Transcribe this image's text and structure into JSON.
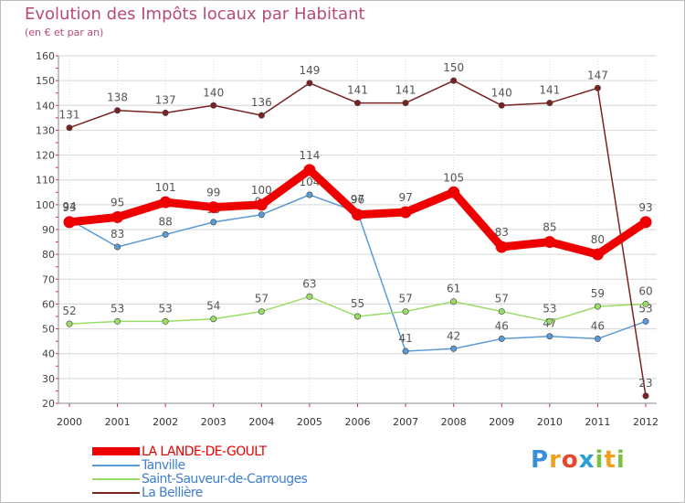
{
  "header": {
    "title": "Evolution des Impôts locaux par Habitant",
    "subtitle": "(en € et par an)"
  },
  "brand": {
    "text": "Proxiti",
    "letters": [
      "P",
      "r",
      "o",
      "x",
      "i",
      "t",
      "i"
    ],
    "letter_colors": [
      "#3a8fd8",
      "#f0a020",
      "#e8452f",
      "#2a9fd8",
      "#7ac043",
      "#f0a020",
      "#7ac043"
    ]
  },
  "chart_data": {
    "type": "line",
    "title": "Evolution des Impôts locaux par Habitant",
    "subtitle": "(en € et par an)",
    "xlabel": "",
    "ylabel": "",
    "ylim": [
      20,
      160
    ],
    "yticks": [
      20,
      30,
      40,
      50,
      60,
      70,
      80,
      90,
      100,
      110,
      120,
      130,
      140,
      150,
      160
    ],
    "grid": true,
    "legend_position": "bottom-left",
    "categories": [
      "2000",
      "2001",
      "2002",
      "2003",
      "2004",
      "2005",
      "2006",
      "2007",
      "2008",
      "2009",
      "2010",
      "2011",
      "2012"
    ],
    "series": [
      {
        "name": "LA LANDE-DE-GOULT",
        "color": "#ee0000",
        "legend_text_color": "#ee0000",
        "emphasis": "bold",
        "values": [
          93,
          95,
          101,
          99,
          100,
          114,
          96,
          97,
          105,
          83,
          85,
          80,
          93
        ]
      },
      {
        "name": "Tanville",
        "color": "#5b9bd5",
        "legend_text_color": "#3f7fd0",
        "emphasis": "normal",
        "values": [
          94,
          83,
          88,
          93,
          96,
          104,
          97,
          41,
          42,
          46,
          47,
          46,
          53
        ]
      },
      {
        "name": "Saint-Sauveur-de-Carrouges",
        "color": "#99dd66",
        "legend_text_color": "#3f7fd0",
        "emphasis": "normal",
        "values": [
          52,
          53,
          53,
          54,
          57,
          63,
          55,
          57,
          61,
          57,
          53,
          59,
          60
        ]
      },
      {
        "name": "La Bellière",
        "color": "#7a2222",
        "legend_text_color": "#3f7fd0",
        "emphasis": "normal",
        "values": [
          131,
          138,
          137,
          140,
          136,
          149,
          141,
          141,
          150,
          140,
          141,
          147,
          23
        ]
      }
    ]
  }
}
